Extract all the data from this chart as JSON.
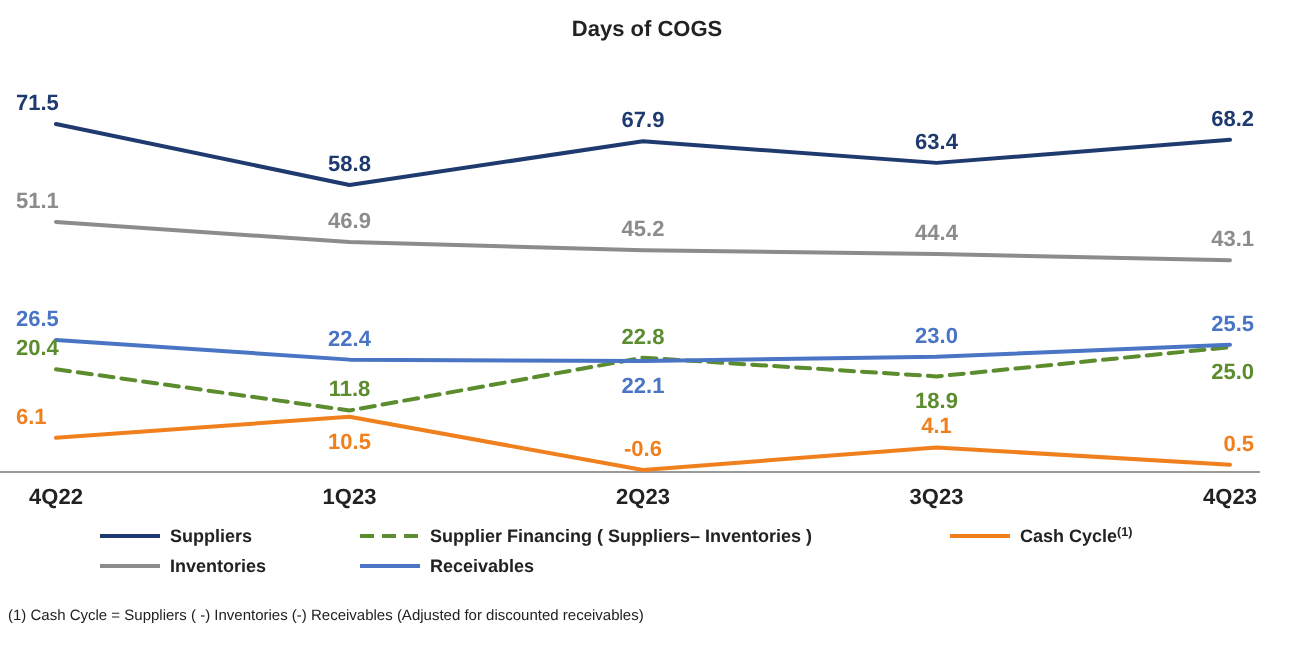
{
  "chart_data": {
    "type": "line",
    "title": "Days of COGS",
    "categories": [
      "4Q22",
      "1Q23",
      "2Q23",
      "3Q23",
      "4Q23"
    ],
    "legend": "bottom",
    "marker": "none",
    "series": [
      {
        "name": "Suppliers",
        "color": "#1f3a6e",
        "values": [
          71.5,
          58.8,
          67.9,
          63.4,
          68.2
        ],
        "value_labels": [
          "71.5",
          "58.8",
          "67.9",
          "63.4",
          "68.2"
        ]
      },
      {
        "name": "Supplier Financing ( Suppliers– Inventories )",
        "color": "#5b8c2e",
        "line_style": "dashed",
        "values": [
          20.4,
          11.8,
          22.8,
          18.9,
          25.0
        ],
        "value_labels": [
          "20.4",
          "11.8",
          "22.8",
          "18.9",
          "25.0"
        ]
      },
      {
        "name": "Cash Cycle$^{(1)}$",
        "color": "#f07f1e",
        "values": [
          6.1,
          10.5,
          -0.6,
          4.1,
          0.5
        ],
        "value_labels": [
          "6.1",
          "10.5",
          "-0.6",
          "4.1",
          "0.5"
        ]
      },
      {
        "name": "Inventories",
        "color": "#8c8c8c",
        "values": [
          51.1,
          46.9,
          45.2,
          44.4,
          43.1
        ],
        "value_labels": [
          "51.1",
          "46.9",
          "45.2",
          "44.4",
          "43.1"
        ]
      },
      {
        "name": "Receivables",
        "color": "#4a74c4",
        "values": [
          26.5,
          22.4,
          22.1,
          23.0,
          25.5
        ],
        "value_labels": [
          "26.5",
          "22.4",
          "22.1",
          "23.0",
          "25.5"
        ]
      }
    ],
    "annotations": [
      "(1) Cash Cycle = Suppliers ( -) Inventories (-) Receivables (Adjusted for discounted receivables)"
    ]
  }
}
